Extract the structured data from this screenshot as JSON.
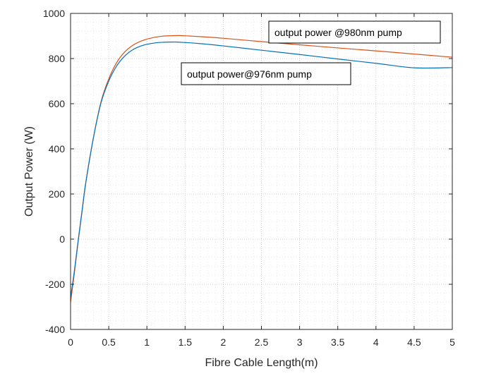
{
  "chart_data": {
    "type": "line",
    "xlabel": "Fibre Cable Length(m)",
    "ylabel": "Output Power (W)",
    "xlim": [
      0,
      5
    ],
    "ylim": [
      -400,
      1000
    ],
    "xticks": [
      0,
      0.5,
      1,
      1.5,
      2,
      2.5,
      3,
      3.5,
      4,
      4.5,
      5
    ],
    "xtick_labels": [
      "0",
      "0.5",
      "1",
      "1.5",
      "2",
      "2.5",
      "3",
      "3.5",
      "4",
      "4.5",
      "5"
    ],
    "yticks": [
      -400,
      -200,
      0,
      200,
      400,
      600,
      800,
      1000
    ],
    "ytick_labels": [
      "-400",
      "-200",
      "0",
      "200",
      "400",
      "600",
      "800",
      "1000"
    ],
    "grid": "major and minor, dotted",
    "series": [
      {
        "name": "output power @980nm pump",
        "color": "#d95319",
        "x": [
          0,
          0.05,
          0.1,
          0.15,
          0.2,
          0.3,
          0.4,
          0.5,
          0.6,
          0.7,
          0.8,
          0.9,
          1.0,
          1.1,
          1.2,
          1.3,
          1.4,
          1.5,
          1.6,
          1.8,
          2.0,
          2.5,
          3.0,
          3.5,
          4.0,
          4.5,
          5.0
        ],
        "y": [
          -280,
          -150,
          -10,
          120,
          250,
          450,
          610,
          710,
          780,
          826,
          855,
          874,
          886,
          894,
          899,
          901,
          902,
          901,
          899,
          895,
          890,
          875,
          861,
          847,
          834,
          820,
          806
        ]
      },
      {
        "name": "output power@976nm pump",
        "color": "#0072bd",
        "x": [
          0,
          0.05,
          0.1,
          0.15,
          0.2,
          0.3,
          0.4,
          0.5,
          0.6,
          0.7,
          0.8,
          0.9,
          1.0,
          1.1,
          1.2,
          1.3,
          1.4,
          1.5,
          1.6,
          1.8,
          2.0,
          2.5,
          3.0,
          3.5,
          4.0,
          4.5,
          5.0
        ],
        "y": [
          -260,
          -140,
          -5,
          125,
          252,
          450,
          605,
          700,
          765,
          808,
          836,
          853,
          863,
          869,
          872,
          873,
          873,
          871,
          869,
          863,
          856,
          837,
          818,
          798,
          779,
          759,
          760
        ]
      }
    ],
    "annotations": [
      {
        "text": "output power @980nm pump"
      },
      {
        "text": "output power@976nm pump"
      }
    ]
  }
}
